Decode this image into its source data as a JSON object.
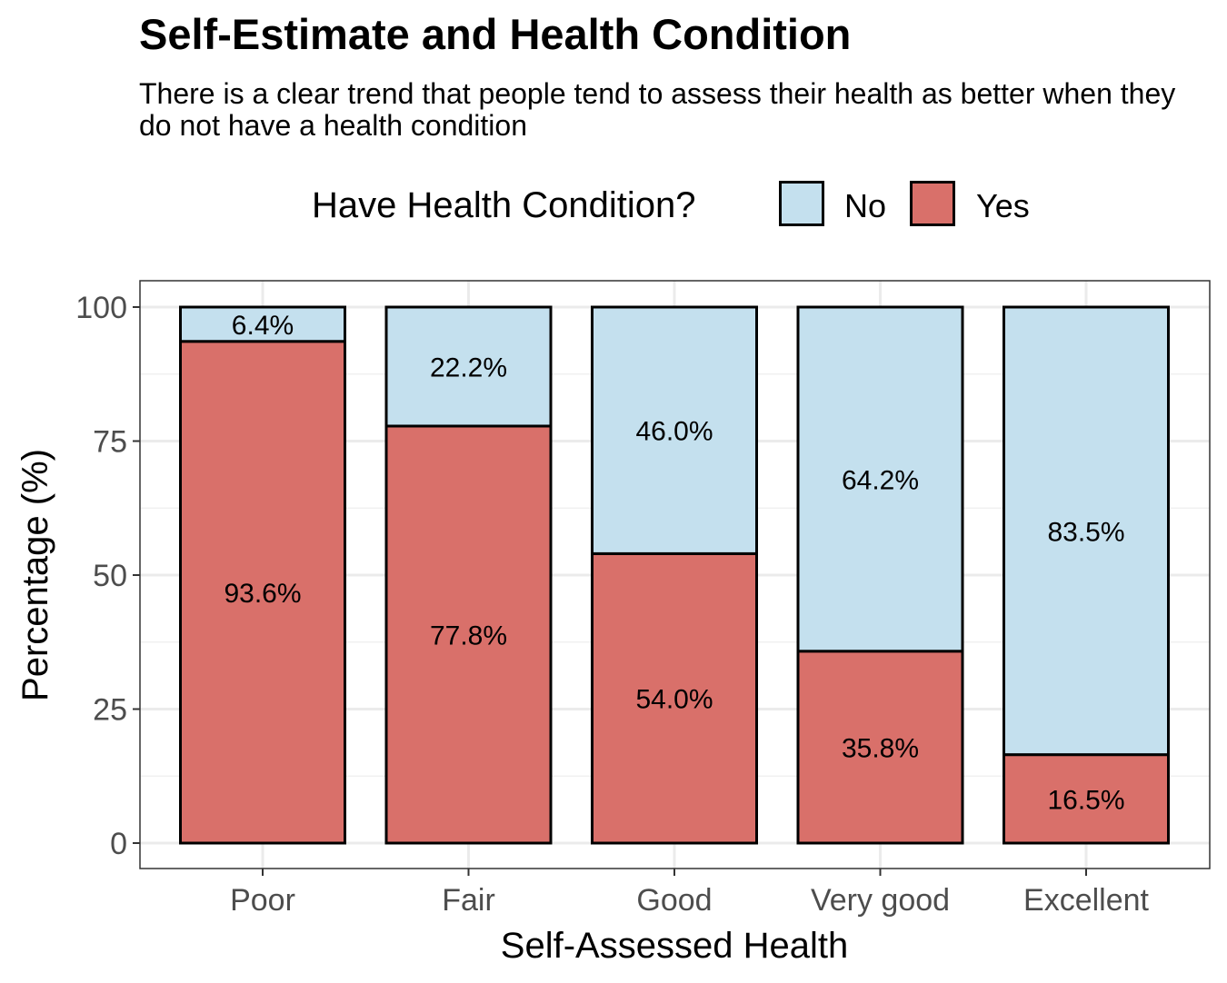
{
  "chart_data": {
    "type": "bar",
    "stacked": true,
    "title": "Self-Estimate and Health Condition",
    "subtitle": "There is a clear trend that people tend to assess their health as better when they do not have a health condition",
    "xlabel": "Self-Assessed Health",
    "ylabel": "Percentage (%)",
    "ylim": [
      0,
      100
    ],
    "yticks": [
      "0",
      "25",
      "50",
      "75",
      "100"
    ],
    "categories": [
      "Poor",
      "Fair",
      "Good",
      "Very good",
      "Excellent"
    ],
    "legend": {
      "title": "Have Health Condition?",
      "position": "top"
    },
    "grid": true,
    "series": [
      {
        "name": "Yes",
        "color": "#D9706A",
        "values": [
          93.6,
          77.8,
          54.0,
          35.8,
          16.5
        ],
        "labels": [
          "93.6%",
          "77.8%",
          "54.0%",
          "35.8%",
          "16.5%"
        ]
      },
      {
        "name": "No",
        "color": "#C4E0EE",
        "values": [
          6.4,
          22.2,
          46.0,
          64.2,
          83.5
        ],
        "labels": [
          "6.4%",
          "22.2%",
          "46.0%",
          "64.2%",
          "83.5%"
        ]
      }
    ]
  }
}
